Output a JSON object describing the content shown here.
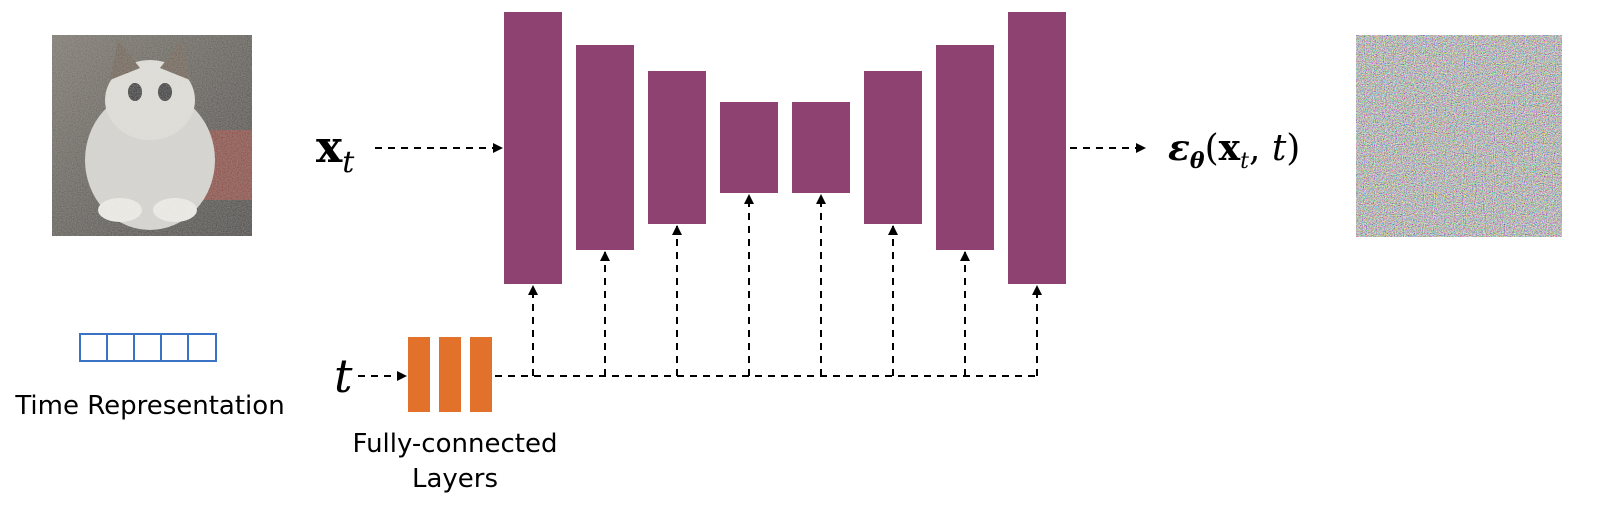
{
  "input_label": {
    "symbol": "x",
    "subscript": "t"
  },
  "time_label": "t",
  "output_label": {
    "parts": [
      "ε",
      "θ",
      "(",
      "x",
      "t",
      ", ",
      "t",
      ")"
    ]
  },
  "time_representation": "Time Representation",
  "fc_layers": [
    "Fully-connected",
    "Layers"
  ]
}
